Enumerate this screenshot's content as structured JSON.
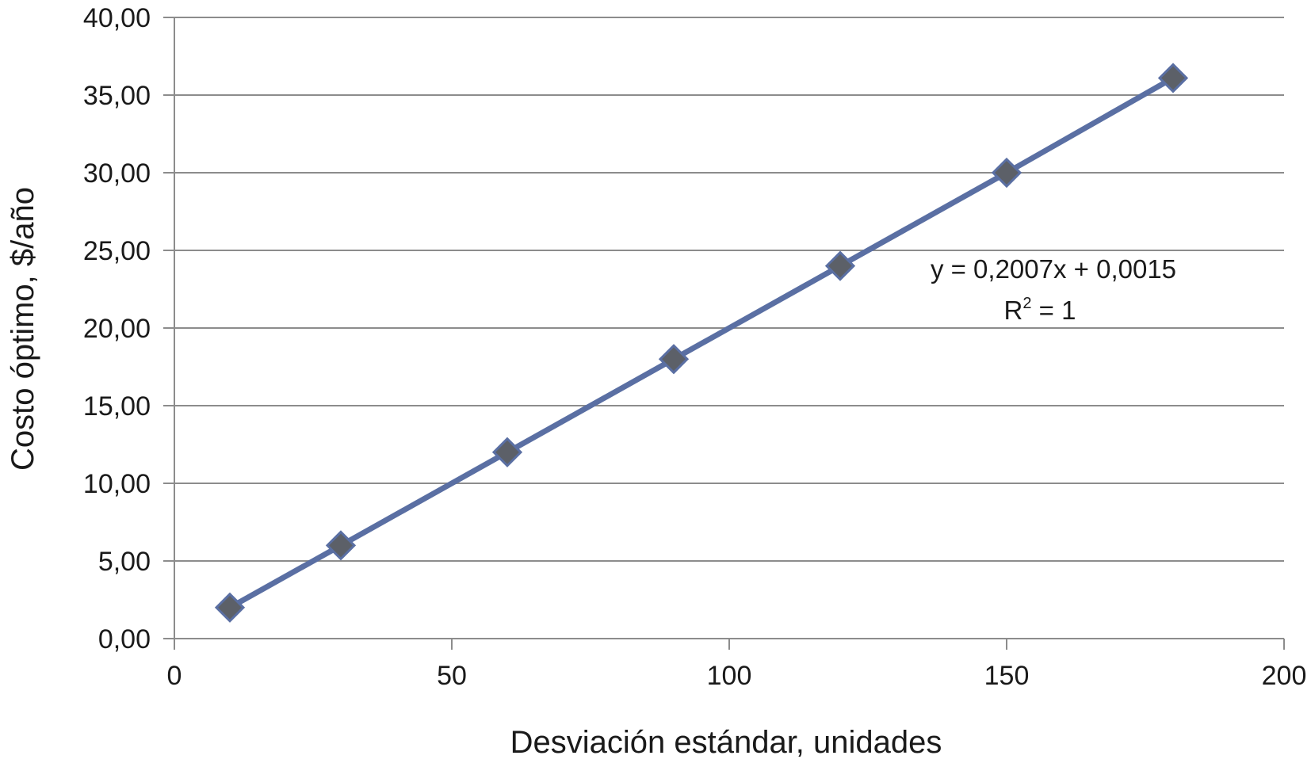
{
  "chart_data": {
    "type": "scatter",
    "title": "",
    "xlabel": "Desviación estándar, unidades",
    "ylabel": "Costo óptimo, $/año",
    "xlim": [
      0,
      200
    ],
    "ylim": [
      0,
      40
    ],
    "x_ticks": [
      "0",
      "50",
      "100",
      "150",
      "200"
    ],
    "y_ticks": [
      "0,00",
      "5,00",
      "10,00",
      "15,00",
      "20,00",
      "25,00",
      "30,00",
      "35,00",
      "40,00"
    ],
    "grid": "horizontal",
    "marker": "diamond",
    "series": [
      {
        "x": [
          10,
          30,
          60,
          90,
          120,
          150,
          180
        ],
        "y": [
          2.0,
          6.0,
          12.0,
          18.0,
          24.0,
          30.0,
          36.1
        ]
      }
    ],
    "trendline": {
      "type": "linear",
      "equation": "y = 0,2007x + 0,0015",
      "r2_label": "R",
      "r2_sup": "2",
      "r2_value": " = 1"
    },
    "colors": {
      "line": "#5a6fa3",
      "marker": "#5c6068",
      "marker_edge": "#5a6fa3",
      "grid": "#8c8c8c",
      "axis": "#8c8c8c"
    }
  }
}
